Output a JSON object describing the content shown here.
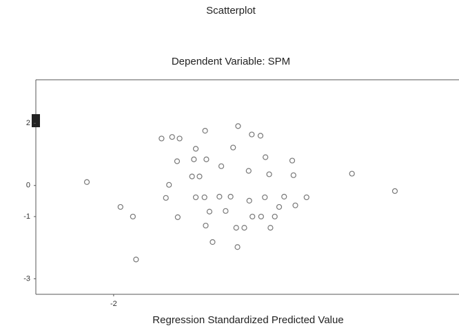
{
  "chart_data": {
    "type": "scatter",
    "title": "Scatterplot",
    "subtitle": "Dependent Variable: SPM",
    "xlabel": "Regression Standardized Predicted Value",
    "x": [
      -1.23,
      -1.06,
      -0.94,
      -0.53,
      0,
      0.22,
      0.36,
      -0.68,
      -0.08,
      -0.98,
      -0.71,
      -0.51,
      0.44,
      0.87,
      -0.27,
      0.17,
      -0.74,
      -0.62,
      0.5,
      0.89,
      1.83,
      -2.43,
      -1.11,
      2.52,
      -1.16,
      -0.68,
      -0.54,
      -0.3,
      -0.12,
      0.18,
      0.43,
      0.74,
      1.1,
      -1.89,
      0.66,
      0.92,
      -0.46,
      -0.2,
      -1.69,
      -0.97,
      0.23,
      0.37,
      0.59,
      -0.52,
      -0.03,
      0.1,
      0.52,
      -0.41,
      -0.01,
      -1.64
    ],
    "values": [
      1.51,
      1.56,
      1.51,
      1.76,
      1.91,
      1.64,
      1.6,
      1.18,
      1.22,
      0.78,
      0.84,
      0.84,
      0.91,
      0.8,
      0.62,
      0.47,
      0.29,
      0.29,
      0.36,
      0.33,
      0.38,
      0.11,
      0.02,
      -0.18,
      -0.4,
      -0.38,
      -0.38,
      -0.36,
      -0.36,
      -0.49,
      -0.38,
      -0.36,
      -0.38,
      -0.69,
      -0.69,
      -0.64,
      -0.84,
      -0.82,
      -1.0,
      -1.02,
      -1.0,
      -1.0,
      -1.0,
      -1.29,
      -1.36,
      -1.36,
      -1.36,
      -1.82,
      -1.98,
      -2.38
    ],
    "color": "#777777",
    "xlim": [
      -3.25,
      3.55
    ],
    "xticks": [
      -2
    ],
    "ylim": [
      -3.5,
      3.4
    ],
    "yticks": [
      2,
      0,
      -1,
      -3
    ]
  }
}
